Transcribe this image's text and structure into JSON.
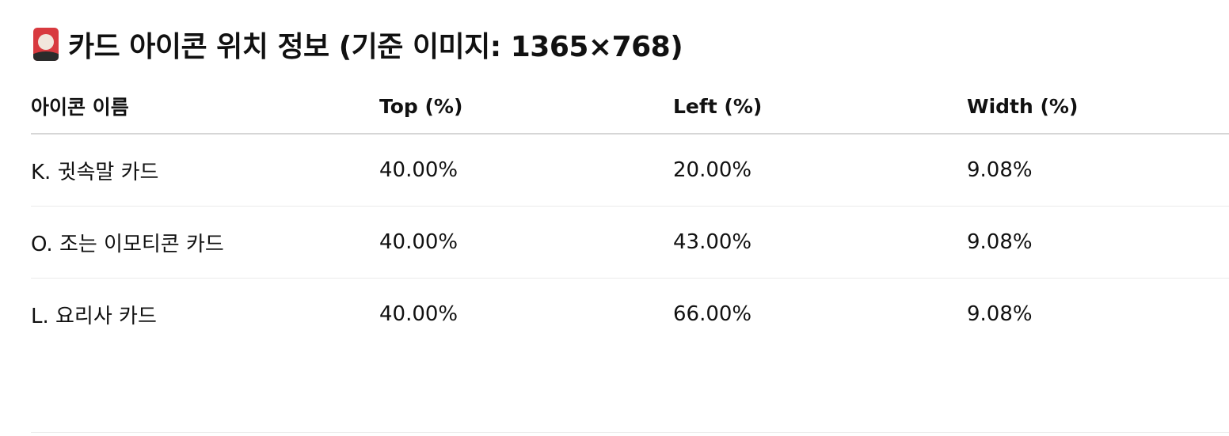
{
  "heading": {
    "icon": "flower-playing-card-icon",
    "text": "카드 아이콘 위치 정보 (기준 이미지: 1365×768)"
  },
  "table": {
    "columns": [
      "아이콘 이름",
      "Top (%)",
      "Left (%)",
      "Width (%)"
    ],
    "rows": [
      [
        "K. 귓속말 카드",
        "40.00%",
        "20.00%",
        "9.08%"
      ],
      [
        "O. 조는 이모티콘 카드",
        "40.00%",
        "43.00%",
        "9.08%"
      ],
      [
        "L. 요리사 카드",
        "40.00%",
        "66.00%",
        "9.08%"
      ]
    ]
  }
}
